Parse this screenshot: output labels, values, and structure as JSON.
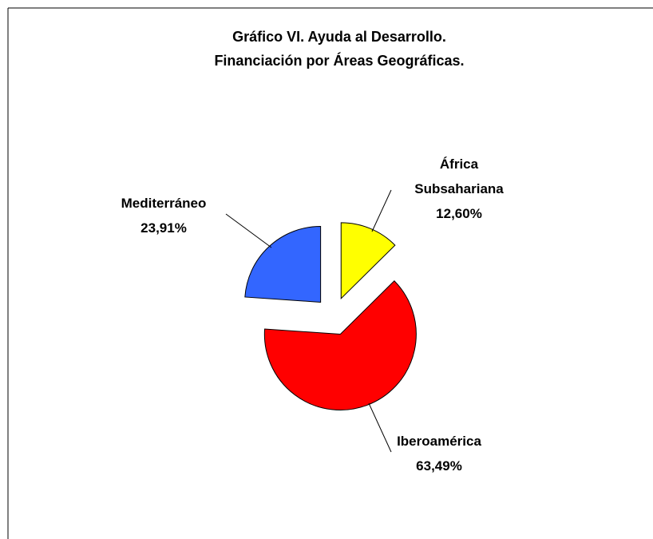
{
  "chart_data": {
    "type": "pie",
    "title": "Gráfico VI. Ayuda al Desarrollo.",
    "subtitle": "Financiación por Áreas Geográficas.",
    "categories": [
      "África Subsahariana",
      "Iberoamérica",
      "Mediterráneo"
    ],
    "values": [
      12.6,
      63.49,
      23.91
    ],
    "value_labels": [
      "12,60%",
      "63,49%",
      "23,91%"
    ],
    "colors": [
      "#ffff00",
      "#ff0000",
      "#3366ff"
    ],
    "exploded": true
  }
}
